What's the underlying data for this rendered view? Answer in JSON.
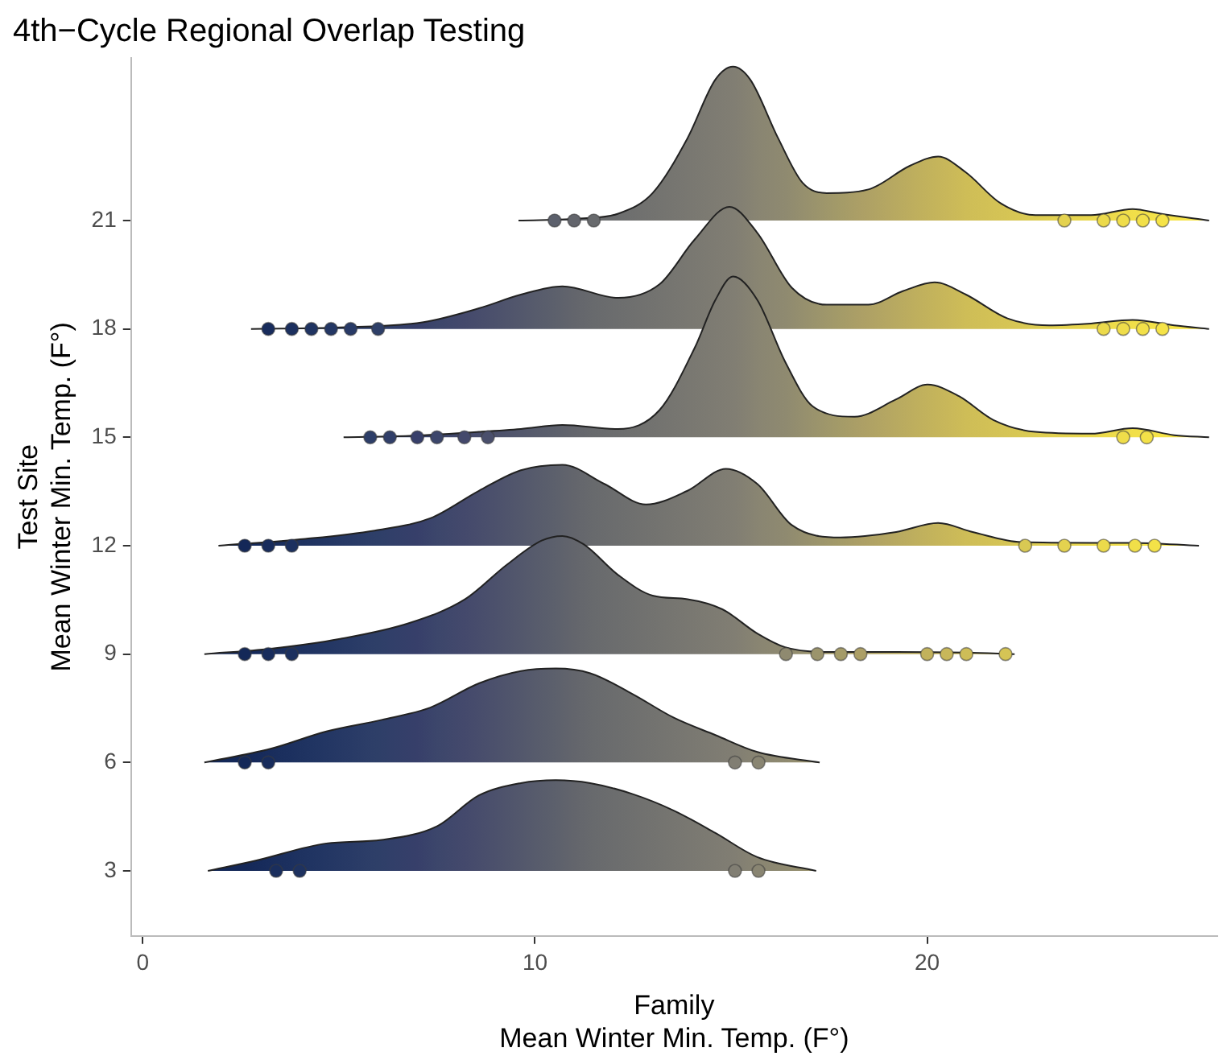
{
  "chart_data": {
    "type": "area",
    "title": "4th−Cycle Regional Overlap Testing",
    "xlabel": "Family\nMean Winter Min. Temp. (F°)",
    "ylabel": "Test Site\nMean Winter Min. Temp. (F°)",
    "xlim": [
      -0.3,
      27.4
    ],
    "xticks": [
      0,
      10,
      20
    ],
    "ylim": [
      1.2,
      25.5
    ],
    "yticks": [
      3,
      6,
      9,
      12,
      15,
      18,
      21
    ],
    "grid": false,
    "legend": false,
    "series": [
      {
        "type": "scatter",
        "marker": "circle",
        "x": [
          10.5,
          11,
          11.5,
          23.5,
          24.5,
          25,
          25.5,
          26
        ],
        "values": [
          21,
          21,
          21,
          21,
          21,
          21,
          21,
          21
        ],
        "colors": [
          "#5c606c",
          "#63656c",
          "#686a6d",
          "#e4d24f",
          "#ecda4b",
          "#efdd4a",
          "#f2e049",
          "#f5e347"
        ]
      },
      {
        "type": "scatter",
        "marker": "circle",
        "x": [
          3.2,
          3.8,
          4.3,
          4.8,
          5.3,
          6,
          24.5,
          25,
          25.5,
          26
        ],
        "values": [
          18,
          18,
          18,
          18,
          18,
          18,
          18,
          18,
          18,
          18
        ],
        "colors": [
          "#182c5c",
          "#1c305f",
          "#203462",
          "#243764",
          "#283a66",
          "#2e3f68",
          "#ecda4b",
          "#efdd4a",
          "#f2e049",
          "#f5e347"
        ]
      },
      {
        "type": "scatter",
        "marker": "circle",
        "x": [
          5.8,
          6.3,
          7,
          7.5,
          8.2,
          8.8,
          25,
          25.6
        ],
        "values": [
          15,
          15,
          15,
          15,
          15,
          15,
          15,
          15
        ],
        "colors": [
          "#2d3e68",
          "#313f69",
          "#373f6a",
          "#3c466b",
          "#44496c",
          "#4a4f6c",
          "#efdd4a",
          "#f3e148"
        ]
      },
      {
        "type": "scatter",
        "marker": "circle",
        "x": [
          2.6,
          3.2,
          3.8,
          22.5,
          23.5,
          24.5,
          25.3,
          25.8
        ],
        "values": [
          12,
          12,
          12,
          12,
          12,
          12,
          12,
          12
        ],
        "colors": [
          "#142858",
          "#182c5c",
          "#1c305f",
          "#d9c953",
          "#e4d24f",
          "#ecda4b",
          "#f1df49",
          "#f4e248"
        ]
      },
      {
        "type": "scatter",
        "marker": "circle",
        "x": [
          2.6,
          3.2,
          3.8,
          16.4,
          17.2,
          17.8,
          18.3,
          20,
          20.5,
          21,
          22
        ],
        "values": [
          9,
          9,
          9,
          9,
          9,
          9,
          9,
          9,
          9,
          9,
          9
        ],
        "colors": [
          "#142858",
          "#182c5c",
          "#1c305f",
          "#8f8a70",
          "#9b946c",
          "#a49b68",
          "#ac9f66",
          "#c2b25c",
          "#c8b75a",
          "#cebd57",
          "#d5c455"
        ]
      },
      {
        "type": "scatter",
        "marker": "circle",
        "x": [
          2.6,
          3.2,
          15.1,
          15.7
        ],
        "values": [
          6,
          6,
          6,
          6
        ],
        "colors": [
          "#142858",
          "#182c5c",
          "#817e73",
          "#898572"
        ]
      },
      {
        "type": "scatter",
        "marker": "circle",
        "x": [
          3.4,
          4,
          15.1,
          15.7
        ],
        "values": [
          3,
          3,
          3,
          3
        ],
        "colors": [
          "#1a2e5d",
          "#1e3260",
          "#817e73",
          "#898572"
        ]
      },
      {
        "type": "area",
        "color": "#222222",
        "x": [
          1.66,
          2.9,
          4.68,
          6.09,
          7.51,
          8.57,
          9.64,
          10.53,
          11.41,
          12.48,
          13.54,
          14.6,
          15.67,
          17.17
        ],
        "values": [
          3,
          3.29,
          3.76,
          3.86,
          4.24,
          5.09,
          5.43,
          5.51,
          5.43,
          5.13,
          4.67,
          4.05,
          3.38,
          3
        ]
      },
      {
        "type": "area",
        "color": "#222222",
        "x": [
          1.57,
          3.26,
          4.68,
          6.09,
          7.33,
          8.57,
          9.64,
          10.53,
          11.41,
          12.48,
          13.54,
          14.6,
          15.67,
          17.26
        ],
        "values": [
          6,
          6.38,
          6.86,
          7.18,
          7.52,
          8.19,
          8.53,
          8.6,
          8.47,
          7.9,
          7.24,
          6.76,
          6.29,
          6
        ]
      },
      {
        "type": "area",
        "color": "#222222",
        "x": [
          1.57,
          3.26,
          5.03,
          6.8,
          8.22,
          9.28,
          10.17,
          10.7,
          11.24,
          12.12,
          13,
          13.89,
          14.78,
          15.67,
          16.38,
          17.44,
          19.21,
          20.99,
          22.23
        ],
        "values": [
          9,
          9.15,
          9.42,
          9.86,
          10.52,
          11.47,
          12.14,
          12.27,
          12.04,
          11.19,
          10.62,
          10.52,
          10.24,
          9.57,
          9.19,
          9.06,
          9.06,
          9.04,
          9
        ]
      },
      {
        "type": "area",
        "color": "#222222",
        "x": [
          1.93,
          4.14,
          5.91,
          7.33,
          8.57,
          9.64,
          10.7,
          11.77,
          12.83,
          13.89,
          14.87,
          15.67,
          16.55,
          17.79,
          19.21,
          20.28,
          21.16,
          22.4,
          24.18,
          25.24,
          26.93
        ],
        "values": [
          12,
          12.19,
          12.42,
          12.76,
          13.52,
          14.09,
          14.24,
          13.71,
          13.14,
          13.52,
          14.13,
          13.71,
          12.57,
          12.23,
          12.38,
          12.63,
          12.38,
          12.1,
          12.08,
          12.08,
          12
        ]
      },
      {
        "type": "area",
        "color": "#222222",
        "x": [
          5.12,
          6.8,
          8.57,
          9.64,
          10.7,
          12.12,
          13.18,
          14.07,
          14.6,
          15.05,
          15.67,
          16.38,
          17.08,
          18.15,
          19.21,
          20.01,
          20.81,
          21.69,
          22.76,
          24.18,
          25.24,
          26.3,
          27.19
        ],
        "values": [
          15,
          15.04,
          15.15,
          15.23,
          15.34,
          15.23,
          15.76,
          17.47,
          18.8,
          19.45,
          18.8,
          17.09,
          15.86,
          15.57,
          16.05,
          16.46,
          16.14,
          15.48,
          15.15,
          15.1,
          15.25,
          15.06,
          15
        ]
      },
      {
        "type": "area",
        "color": "#222222",
        "x": [
          2.76,
          5.03,
          7.16,
          8.57,
          9.64,
          10.7,
          12.12,
          13.18,
          14.07,
          14.96,
          15.67,
          16.55,
          17.44,
          18.5,
          19.39,
          20.19,
          20.99,
          22.05,
          23.11,
          24.18,
          25.24,
          26.3,
          27.19
        ],
        "values": [
          18,
          18.04,
          18.19,
          18.57,
          18.95,
          19.18,
          18.86,
          19.24,
          20.47,
          21.38,
          20.66,
          19.14,
          18.67,
          18.67,
          19.05,
          19.29,
          18.95,
          18.29,
          18.1,
          18.15,
          18.25,
          18.1,
          18
        ]
      },
      {
        "type": "area",
        "color": "#222222",
        "x": [
          9.58,
          11.23,
          12.12,
          13,
          13.89,
          14.6,
          15.05,
          15.49,
          16.2,
          16.82,
          17.44,
          18.5,
          19.57,
          20.28,
          20.99,
          21.87,
          22.76,
          24.18,
          25.24,
          25.95,
          27.19
        ],
        "values": [
          21,
          21.06,
          21.19,
          21.76,
          23.28,
          24.9,
          25.26,
          24.9,
          23.28,
          22.05,
          21.76,
          21.86,
          22.52,
          22.77,
          22.33,
          21.48,
          21.15,
          21.15,
          21.32,
          21.19,
          21
        ]
      }
    ]
  }
}
